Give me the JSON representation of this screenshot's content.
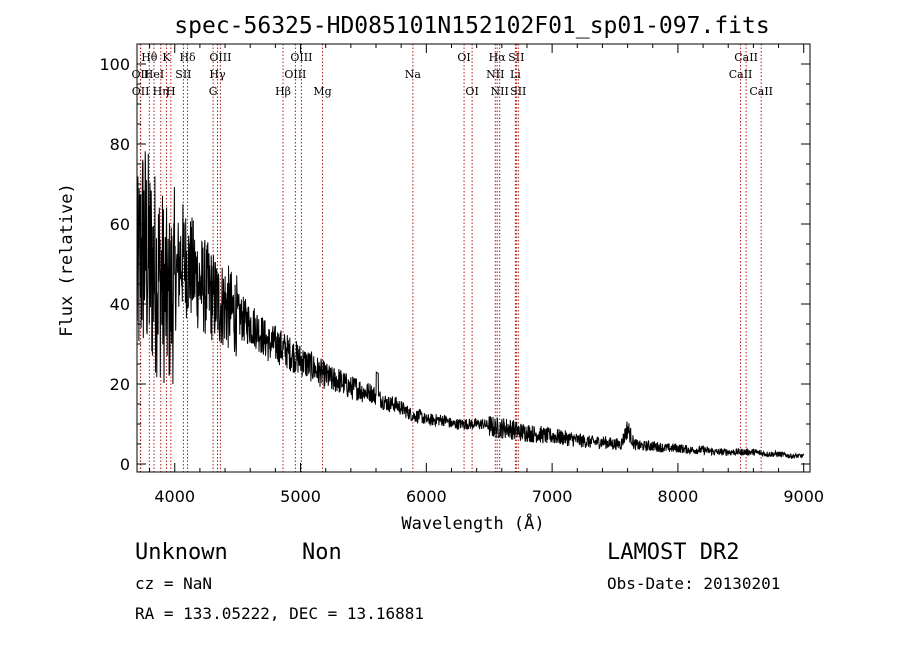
{
  "chart_data": {
    "type": "line",
    "title": "spec-56325-HD085101N152102F01_sp01-097.fits",
    "xlabel": "Wavelength (Å)",
    "ylabel": "Flux (relative)",
    "xlim": [
      3700,
      9050
    ],
    "ylim": [
      -2,
      105
    ],
    "xticks": [
      4000,
      5000,
      6000,
      7000,
      8000,
      9000
    ],
    "yticks": [
      0,
      20,
      40,
      60,
      80,
      100
    ],
    "grid": false,
    "series": [
      {
        "x": [
          3700,
          3750,
          3800,
          3850,
          3900,
          3950,
          4000,
          4050,
          4100,
          4150,
          4200,
          4250,
          4300,
          4350,
          4400,
          4450,
          4500,
          4550,
          4600,
          4650,
          4700,
          4750,
          4800,
          4850,
          4900,
          4950,
          5000,
          5050,
          5100,
          5150,
          5200,
          5250,
          5300,
          5350,
          5400,
          5450,
          5500,
          5550,
          5600,
          5650,
          5700,
          5750,
          5800,
          5850,
          5900,
          5950,
          6000,
          6050,
          6100,
          6150,
          6200,
          6250,
          6300,
          6350,
          6400,
          6450,
          6500,
          6550,
          6600,
          6650,
          6700,
          6750,
          6800,
          6850,
          6900,
          6950,
          7000,
          7100,
          7200,
          7300,
          7400,
          7500,
          7550,
          7600,
          7650,
          7700,
          7800,
          7900,
          8000,
          8100,
          8200,
          8300,
          8400,
          8500,
          8600,
          8700,
          8800,
          8900,
          9000
        ],
        "values": [
          45,
          55,
          50,
          48,
          45,
          40,
          45,
          52,
          50,
          48,
          45,
          44,
          42,
          40,
          40,
          38,
          37,
          36,
          35,
          34,
          32,
          30,
          30,
          29,
          28,
          27,
          26,
          25,
          24,
          23,
          22,
          21,
          21,
          20,
          19,
          19,
          18,
          18,
          17,
          16,
          15,
          15,
          14,
          13,
          12,
          12,
          11,
          11,
          11,
          11,
          10,
          10,
          10,
          10,
          10,
          10,
          9.5,
          9,
          9,
          9,
          8.5,
          8,
          8,
          7.5,
          7.5,
          7,
          7,
          6.5,
          6,
          5.5,
          5.5,
          5,
          5,
          9,
          5,
          4.5,
          4.5,
          4,
          4,
          3.5,
          3.5,
          3,
          3,
          3,
          3,
          2.5,
          2.5,
          2,
          2
        ]
      }
    ],
    "line_markers": [
      {
        "label": "Hθ",
        "x": 3798,
        "row": 1
      },
      {
        "label": "OII",
        "x": 3727,
        "row": 2
      },
      {
        "label": "OII",
        "x": 3729,
        "row": 3
      },
      {
        "label": "HeI",
        "x": 3835,
        "row": 2
      },
      {
        "label": "Hη",
        "x": 3889,
        "row": 3
      },
      {
        "label": "K",
        "x": 3934,
        "row": 1
      },
      {
        "label": "H",
        "x": 3969,
        "row": 3
      },
      {
        "label": "SII",
        "x": 4069,
        "row": 2
      },
      {
        "label": "Hδ",
        "x": 4102,
        "row": 1
      },
      {
        "label": "OIII",
        "x": 4363,
        "row": 1
      },
      {
        "label": "Hγ",
        "x": 4340,
        "row": 2
      },
      {
        "label": "G",
        "x": 4305,
        "row": 3
      },
      {
        "label": "Hβ",
        "x": 4861,
        "row": 3
      },
      {
        "label": "OIII",
        "x": 5007,
        "row": 1
      },
      {
        "label": "OIII",
        "x": 4959,
        "row": 2
      },
      {
        "label": "Mg",
        "x": 5175,
        "row": 3
      },
      {
        "label": "Na",
        "x": 5893,
        "row": 2
      },
      {
        "label": "OI",
        "x": 6300,
        "row": 1
      },
      {
        "label": "OI",
        "x": 6364,
        "row": 3
      },
      {
        "label": "Hα",
        "x": 6563,
        "row": 1
      },
      {
        "label": "NII",
        "x": 6548,
        "row": 2
      },
      {
        "label": "NII",
        "x": 6583,
        "row": 3
      },
      {
        "label": "SII",
        "x": 6716,
        "row": 1
      },
      {
        "label": "Li",
        "x": 6708,
        "row": 2
      },
      {
        "label": "SII",
        "x": 6731,
        "row": 3
      },
      {
        "label": "CaII",
        "x": 8542,
        "row": 1
      },
      {
        "label": "CaII",
        "x": 8498,
        "row": 2
      },
      {
        "label": "CaII",
        "x": 8662,
        "row": 3
      }
    ]
  },
  "info": {
    "class": "Unknown",
    "subclass": "Non",
    "survey": "LAMOST DR2",
    "cz": "cz = NaN",
    "obs_date": "Obs-Date: 20130201",
    "coords": "RA = 133.05222, DEC =  13.16881"
  }
}
